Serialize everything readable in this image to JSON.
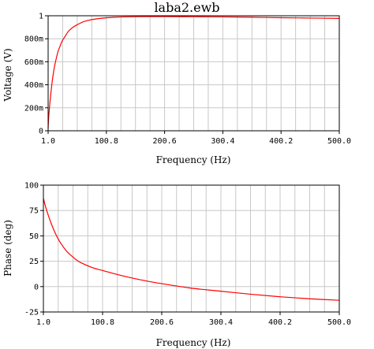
{
  "colors": {
    "trace": "#ff0000",
    "grid": "#c8c8c8",
    "frame": "#000000",
    "background": "#ffffff"
  },
  "chart_data": [
    {
      "type": "line",
      "title": "laba2.ewb",
      "xlabel": "Frequency (Hz)",
      "ylabel": "Voltage (V)",
      "xlim": [
        1.0,
        500.0
      ],
      "ylim": [
        0,
        1
      ],
      "grid": true,
      "x_ticks": [
        1.0,
        100.8,
        200.6,
        300.4,
        400.2,
        500.0
      ],
      "x_tick_labels": [
        "1.0",
        "100.8",
        "200.6",
        "300.4",
        "400.2",
        "500.0"
      ],
      "y_ticks": [
        0,
        0.2,
        0.4,
        0.6,
        0.8,
        1.0
      ],
      "y_tick_labels": [
        "0",
        "200m",
        "400m",
        "600m",
        "800m",
        "1"
      ],
      "series": [
        {
          "color": "#ff0000",
          "x": [
            1,
            2,
            4,
            6,
            8,
            10,
            12,
            15,
            18,
            21,
            25,
            30,
            35,
            40,
            45,
            50,
            60,
            70,
            80,
            90,
            100,
            115,
            130,
            150,
            175,
            200,
            250,
            300,
            350,
            400,
            450,
            500
          ],
          "y": [
            0.02,
            0.12,
            0.24,
            0.34,
            0.43,
            0.5,
            0.56,
            0.63,
            0.69,
            0.73,
            0.78,
            0.82,
            0.86,
            0.885,
            0.905,
            0.92,
            0.945,
            0.96,
            0.97,
            0.977,
            0.982,
            0.987,
            0.99,
            0.992,
            0.993,
            0.993,
            0.992,
            0.99,
            0.987,
            0.983,
            0.98,
            0.977
          ]
        }
      ]
    },
    {
      "type": "line",
      "title": "",
      "xlabel": "Frequency (Hz)",
      "ylabel": "Phase (deg)",
      "xlim": [
        1.0,
        500.0
      ],
      "ylim": [
        -25,
        100
      ],
      "grid": true,
      "x_ticks": [
        1.0,
        100.8,
        200.6,
        300.4,
        400.2,
        500.0
      ],
      "x_tick_labels": [
        "1.0",
        "100.8",
        "200.6",
        "300.4",
        "400.2",
        "500.0"
      ],
      "y_ticks": [
        -25,
        0,
        25,
        50,
        75,
        100
      ],
      "y_tick_labels": [
        "-25",
        "0",
        "25",
        "50",
        "75",
        "100"
      ],
      "series": [
        {
          "color": "#ff0000",
          "x": [
            1,
            5,
            10,
            15,
            20,
            25,
            30,
            40,
            50,
            60,
            70,
            80,
            90,
            100,
            125,
            150,
            175,
            200,
            250,
            300,
            350,
            400,
            450,
            500
          ],
          "y": [
            87,
            78,
            69,
            61,
            54,
            48,
            43,
            35,
            29.5,
            25,
            22,
            19.5,
            17.5,
            16,
            12,
            8.5,
            5.5,
            3,
            -1.5,
            -4.5,
            -7.5,
            -10,
            -12,
            -13.5
          ]
        }
      ]
    }
  ]
}
